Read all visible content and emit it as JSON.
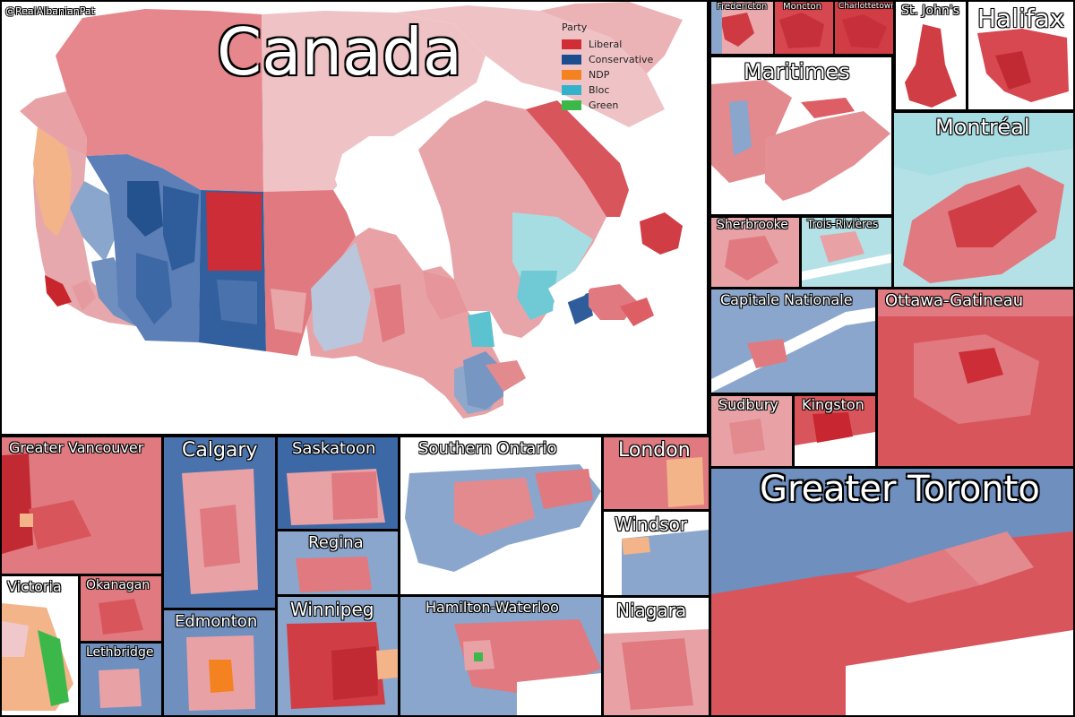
{
  "credit": "@RealAlbanianPat",
  "title": "Canada",
  "legend": {
    "title": "Party",
    "items": [
      {
        "name": "Liberal",
        "color": "#d22c34"
      },
      {
        "name": "Conservative",
        "color": "#1c4d8f"
      },
      {
        "name": "NDP",
        "color": "#f58220"
      },
      {
        "name": "Bloc",
        "color": "#33b2cc"
      },
      {
        "name": "Green",
        "color": "#3cb84a"
      }
    ]
  },
  "insets": {
    "fredericton": "Fredericton",
    "moncton": "Moncton",
    "charlottetown": "Charlottetown",
    "st_johns": "St. John's",
    "halifax": "Halifax",
    "maritimes": "Maritimes",
    "montreal": "Montréal",
    "sherbrooke": "Sherbrooke",
    "trois_rivieres": "Trois-Rivières",
    "capitale_nationale": "Capitale Nationale",
    "ottawa_gatineau": "Ottawa-Gatineau",
    "sudbury": "Sudbury",
    "kingston": "Kingston",
    "greater_toronto": "Greater Toronto",
    "greater_vancouver": "Greater Vancouver",
    "calgary": "Calgary",
    "saskatoon": "Saskatoon",
    "southern_ontario": "Southern Ontario",
    "london": "London",
    "regina": "Regina",
    "windsor": "Windsor",
    "victoria": "Victoria",
    "okanagan": "Okanagan",
    "edmonton": "Edmonton",
    "winnipeg": "Winnipeg",
    "hamilton_waterloo": "Hamilton-Waterloo",
    "niagara": "Niagara",
    "lethbridge": "Lethbridge"
  }
}
